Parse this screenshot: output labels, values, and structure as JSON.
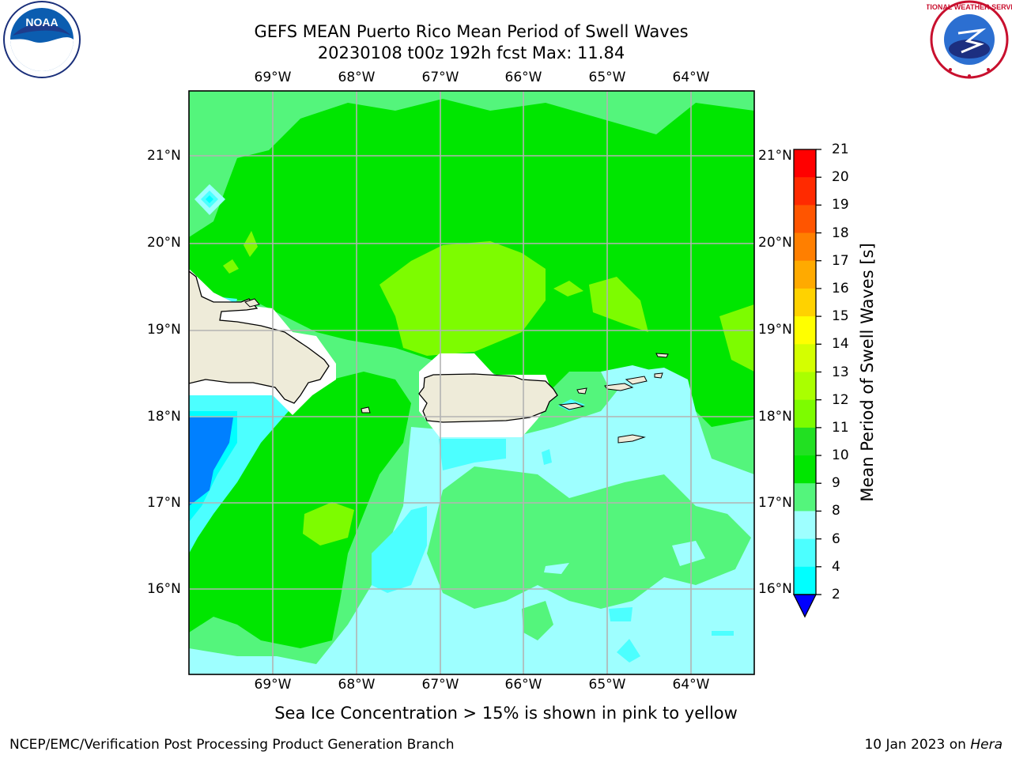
{
  "title": {
    "line1": "GEFS MEAN Puerto Rico Mean Period of Swell Waves",
    "line2": "20230108 t00z 192h fcst   Max: 11.84"
  },
  "map": {
    "lon_ticks": [
      "69°W",
      "68°W",
      "67°W",
      "66°W",
      "65°W",
      "64°W"
    ],
    "lat_ticks": [
      "21°N",
      "20°N",
      "19°N",
      "18°N",
      "17°N",
      "16°N"
    ],
    "land_color": "#eeebd9",
    "ocean_background": "#54f57c"
  },
  "colorbar": {
    "label": "Mean Period of Swell Waves [s]",
    "ticks": [
      "21",
      "20",
      "19",
      "18",
      "17",
      "16",
      "15",
      "14",
      "13",
      "12",
      "11",
      "10",
      "9",
      "8",
      "6",
      "4",
      "2"
    ],
    "colors": [
      "#ff0000",
      "#ff2a00",
      "#ff5500",
      "#ff7f00",
      "#ffaa00",
      "#ffd200",
      "#ffff00",
      "#d4ff00",
      "#aaff00",
      "#7dfc00",
      "#22e022",
      "#00e600",
      "#54f57c",
      "#9effff",
      "#4cffff",
      "#00ffff",
      "#0080ff",
      "#0000ff"
    ]
  },
  "caption": "Sea Ice Concentration > 15% is shown in pink to yellow",
  "footer": {
    "left": "NCEP/EMC/Verification Post Processing Product Generation Branch",
    "right_prefix": "10 Jan 2023 on ",
    "right_machine": "Hera"
  },
  "logos": {
    "left": "NOAA",
    "right": "NATIONAL WEATHER SERVICE"
  }
}
